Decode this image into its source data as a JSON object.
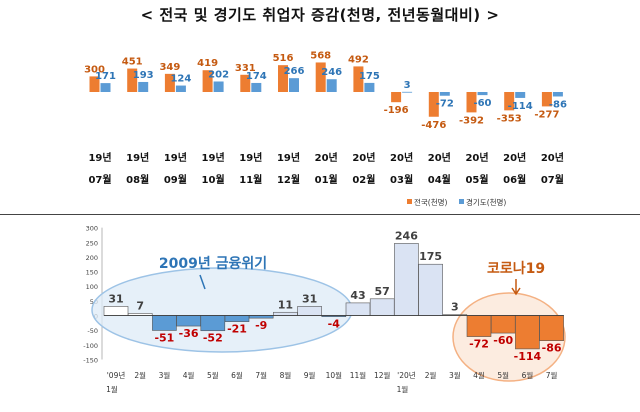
{
  "page": {
    "title": "< 전국 및 경기도 취업자 증감(천명, 전년동월대비) >"
  },
  "chart_data": [
    {
      "type": "bar",
      "categories": [
        [
          "19년",
          "07월"
        ],
        [
          "19년",
          "08월"
        ],
        [
          "19년",
          "09월"
        ],
        [
          "19년",
          "10월"
        ],
        [
          "19년",
          "11월"
        ],
        [
          "19년",
          "12월"
        ],
        [
          "20년",
          "01월"
        ],
        [
          "20년",
          "02월"
        ],
        [
          "20년",
          "03월"
        ],
        [
          "20년",
          "04월"
        ],
        [
          "20년",
          "05월"
        ],
        [
          "20년",
          "06월"
        ],
        [
          "20년",
          "07월"
        ]
      ],
      "series": [
        {
          "name": "전국(천명)",
          "color": "#ed7d31",
          "values": [
            300,
            451,
            349,
            419,
            331,
            516,
            568,
            492,
            -196,
            -476,
            -392,
            -353,
            -277
          ]
        },
        {
          "name": "경기도(천명)",
          "color": "#5b9bd5",
          "values": [
            171,
            193,
            124,
            202,
            174,
            266,
            246,
            175,
            3,
            -72,
            -60,
            -114,
            -86
          ]
        }
      ],
      "legend": "bottom-right"
    },
    {
      "type": "bar",
      "categories": [
        "'09년",
        "2월",
        "3월",
        "4월",
        "5월",
        "6월",
        "7월",
        "8월",
        "9월",
        "10월",
        "11월",
        "12월",
        "'20년",
        "2월",
        "3월",
        "4월",
        "5월",
        "6월",
        "7월"
      ],
      "sub_labels": [
        "1월",
        "",
        "",
        "",
        "",
        "",
        "",
        "",
        "",
        "",
        "",
        "",
        "1월",
        "",
        "",
        "",
        "",
        "",
        ""
      ],
      "values": [
        31,
        7,
        -51,
        -36,
        -52,
        -21,
        -9,
        11,
        31,
        -4,
        43,
        57,
        246,
        175,
        3,
        -72,
        -60,
        -114,
        -86
      ],
      "ylim": [
        -150,
        300
      ],
      "yticks": [
        -150,
        -100,
        -50,
        0,
        50,
        100,
        150,
        200,
        250,
        300
      ],
      "annotations": [
        {
          "text": "2009년 금융위기",
          "color": "#2e75b6"
        },
        {
          "text": "코로나19",
          "color": "#c55a11"
        }
      ]
    }
  ]
}
